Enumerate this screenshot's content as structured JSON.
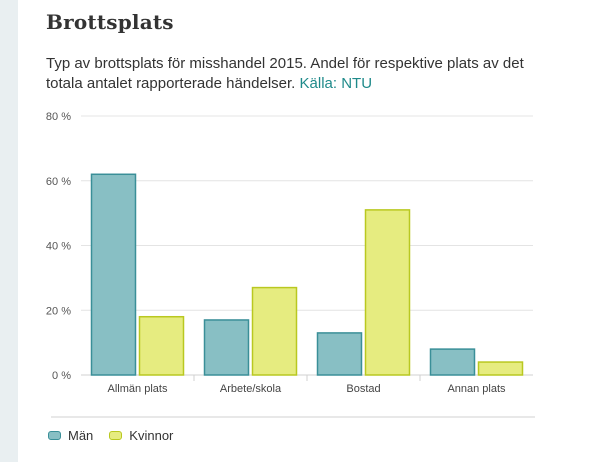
{
  "heading": "Brottsplats",
  "description": "Typ av brottsplats för misshandel 2015. Andel för respektive plats av det totala antalet rapporterade händelser.",
  "source_link": "Källa: NTU",
  "colors": {
    "man_fill": "#88bfc4",
    "man_stroke": "#3a8f98",
    "kvinnor_fill": "#e6ec80",
    "kvinnor_stroke": "#b9c820",
    "grid": "#e4e4e4",
    "axis": "#d0d0d0"
  },
  "chart_data": {
    "type": "bar",
    "categories": [
      "Allmän plats",
      "Arbete/skola",
      "Bostad",
      "Annan plats"
    ],
    "series": [
      {
        "name": "Män",
        "values": [
          62,
          17,
          13,
          8
        ]
      },
      {
        "name": "Kvinnor",
        "values": [
          18,
          27,
          51,
          4
        ]
      }
    ],
    "y_ticks": [
      "0 %",
      "20 %",
      "40 %",
      "60 %",
      "80 %"
    ],
    "ylim": [
      0,
      80
    ],
    "grid": true,
    "legend_position": "bottom-left"
  }
}
